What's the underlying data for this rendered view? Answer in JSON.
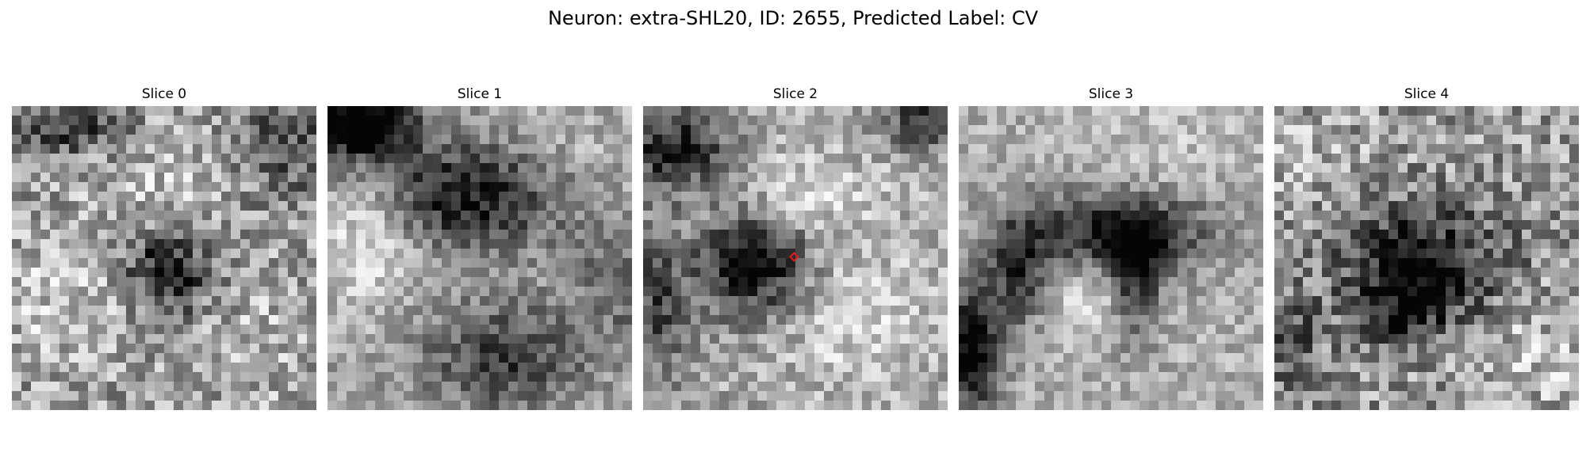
{
  "figure": {
    "title": "Neuron: extra-SHL20, ID: 2655, Predicted Label: CV"
  },
  "slices": [
    {
      "title": "Slice 0",
      "has_marker": false
    },
    {
      "title": "Slice 1",
      "has_marker": false
    },
    {
      "title": "Slice 2",
      "has_marker": true
    },
    {
      "title": "Slice 3",
      "has_marker": false
    },
    {
      "title": "Slice 4",
      "has_marker": false
    }
  ],
  "marker": {
    "shape": "diamond",
    "color": "#e41a1c"
  },
  "colormap": "gray"
}
